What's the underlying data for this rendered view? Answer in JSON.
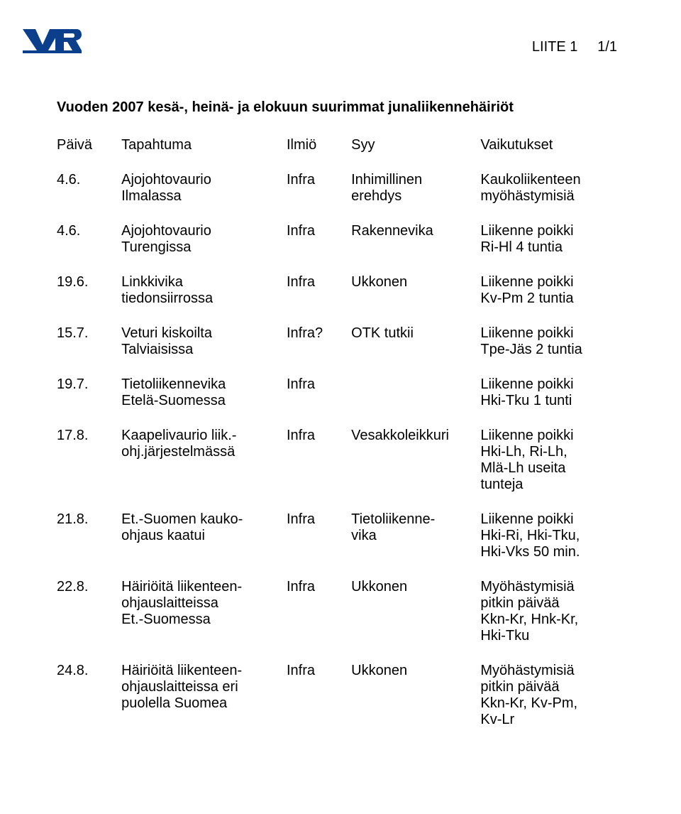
{
  "header": {
    "appendix_label": "LIITE 1",
    "page_number": "1/1"
  },
  "title": "Vuoden 2007 kesä-, heinä- ja elokuun suurimmat junaliikennehäiriöt",
  "columns": {
    "date": "Päivä",
    "event": "Tapahtuma",
    "phenomenon": "Ilmiö",
    "cause": "Syy",
    "effects": "Vaikutukset"
  },
  "rows": [
    {
      "date": "4.6.",
      "event": "Ajojohtovaurio\nIlmalassa",
      "phenomenon": "Infra",
      "cause": "Inhimillinen\nerehdys",
      "effects": "Kaukoliikenteen\nmyöhästymisiä"
    },
    {
      "date": "4.6.",
      "event": "Ajojohtovaurio\nTurengissa",
      "phenomenon": "Infra",
      "cause": "Rakennevika",
      "effects": "Liikenne poikki\nRi-Hl 4 tuntia"
    },
    {
      "date": "19.6.",
      "event": "Linkkivika\ntiedonsiirrossa",
      "phenomenon": "Infra",
      "cause": "Ukkonen",
      "effects": "Liikenne poikki\nKv-Pm 2 tuntia"
    },
    {
      "date": "15.7.",
      "event": "Veturi kiskoilta\nTalviaisissa",
      "phenomenon": "Infra?",
      "cause": "OTK tutkii",
      "effects": "Liikenne poikki\nTpe-Jäs 2 tuntia"
    },
    {
      "date": "19.7.",
      "event": "Tietoliikennevika\nEtelä-Suomessa",
      "phenomenon": "Infra",
      "cause": "",
      "effects": "Liikenne poikki\nHki-Tku 1 tunti"
    },
    {
      "date": "17.8.",
      "event": "Kaapelivaurio liik.-\nohj.järjestelmässä",
      "phenomenon": "Infra",
      "cause": "Vesakkoleikkuri",
      "effects": "Liikenne poikki\nHki-Lh, Ri-Lh,\nMlä-Lh useita\ntunteja"
    },
    {
      "date": "21.8.",
      "event": "Et.-Suomen kauko-\nohjaus kaatui",
      "phenomenon": "Infra",
      "cause": "Tietoliikenne-\nvika",
      "effects": "Liikenne poikki\nHki-Ri, Hki-Tku,\nHki-Vks 50 min."
    },
    {
      "date": "22.8.",
      "event": "Häiriöitä liikenteen-\nohjauslaitteissa\nEt.-Suomessa",
      "phenomenon": "Infra",
      "cause": "Ukkonen",
      "effects": "Myöhästymisiä\npitkin päivää\nKkn-Kr, Hnk-Kr,\nHki-Tku"
    },
    {
      "date": "24.8.",
      "event": "Häiriöitä liikenteen-\nohjauslaitteissa eri\npuolella Suomea",
      "phenomenon": "Infra",
      "cause": "Ukkonen",
      "effects": "Myöhästymisiä\npitkin päivää\nKkn-Kr, Kv-Pm,\nKv-Lr"
    }
  ],
  "logo": {
    "color": "#0b3f8c",
    "width": 85,
    "height": 42
  },
  "style": {
    "body_font_size": 20,
    "title_font_size": 20,
    "text_color": "#000000",
    "background_color": "#ffffff"
  }
}
